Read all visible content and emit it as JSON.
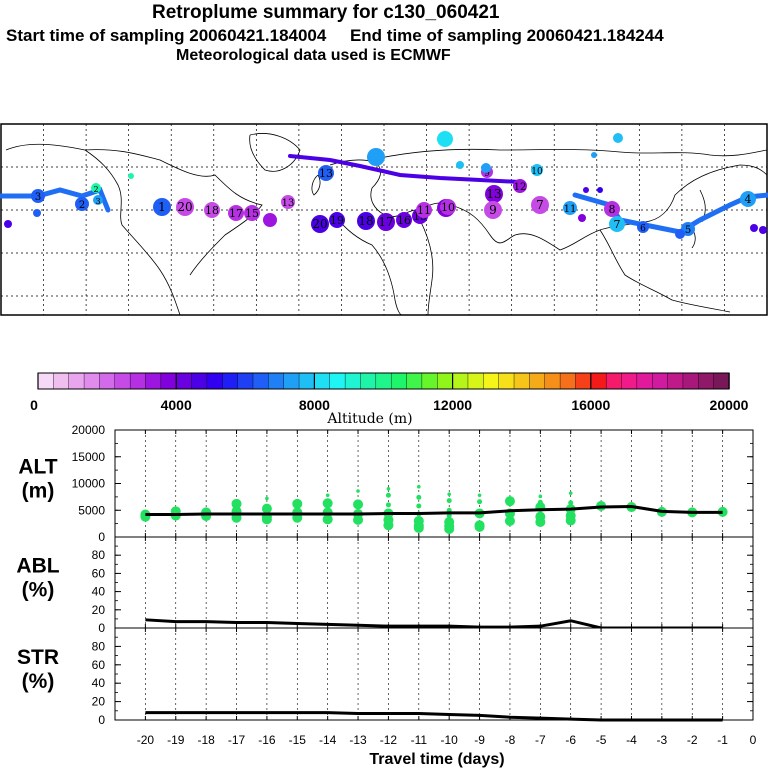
{
  "header": {
    "title": "Retroplume summary for c130_060421",
    "sampling_line": "Start time of sampling 20060421.184004     End time of sampling 20060421.184244",
    "met_line": "Meteorological data used is ECMWF"
  },
  "colors": {
    "scale": [
      "#f6d9f6",
      "#f0bff0",
      "#e9a6ee",
      "#e08ced",
      "#d36ae9",
      "#c64be6",
      "#b52fe3",
      "#9d16e0",
      "#8200dc",
      "#6a00e0",
      "#4b00e6",
      "#3200f0",
      "#1f1ff5",
      "#1f3ff5",
      "#1f5ff5",
      "#1f7ff5",
      "#1f9ff5",
      "#1fbff5",
      "#1fdff5",
      "#1ff5f5",
      "#1ff5d0",
      "#1ff5a8",
      "#1ff58a",
      "#1ff56a",
      "#3ff54a",
      "#65f52a",
      "#90f51a",
      "#b5f51a",
      "#d8f51a",
      "#f5f51a",
      "#f5e01a",
      "#f5c51a",
      "#f5aa1a",
      "#f58f1a",
      "#f5701a",
      "#f5401a",
      "#f51a1a",
      "#f51a6a",
      "#f01a8a",
      "#e01a9a",
      "#d01aa0",
      "#c01a8a",
      "#a8187a",
      "#901868",
      "#781858"
    ],
    "alt_points": "#22e060",
    "line": "#000000"
  },
  "colorbar": {
    "tick_labels": [
      "0",
      "4000",
      "8000",
      "12000",
      "16000",
      "20000"
    ],
    "title": "Altitude (m)"
  },
  "map": {
    "trajectory_labels": [
      {
        "t": "20",
        "c": "#4b00e6"
      },
      {
        "t": "19",
        "c": "#4b00e6"
      },
      {
        "t": "18",
        "c": "#4b00e6"
      },
      {
        "t": "17",
        "c": "#6a00e0"
      },
      {
        "t": "16",
        "c": "#6a00e0"
      },
      {
        "t": "15",
        "c": "#6a00e0"
      },
      {
        "t": "14",
        "c": "#8200dc"
      },
      {
        "t": "13",
        "c": "#8200dc"
      },
      {
        "t": "12",
        "c": "#9d16e0"
      },
      {
        "t": "11",
        "c": "#1f9ff5"
      },
      {
        "t": "10",
        "c": "#1fbff5"
      },
      {
        "t": "9",
        "c": "#b52fe3"
      },
      {
        "t": "8",
        "c": "#b52fe3"
      },
      {
        "t": "7",
        "c": "#1fbff5"
      },
      {
        "t": "6",
        "c": "#1f5ff5"
      },
      {
        "t": "5",
        "c": "#1f7ff5"
      },
      {
        "t": "4",
        "c": "#1f9ff5"
      },
      {
        "t": "3",
        "c": "#1f5ff5"
      },
      {
        "t": "2",
        "c": "#1f5ff5"
      },
      {
        "t": "1",
        "c": "#1f5ff5"
      },
      {
        "t": "20",
        "c": "#c64be6"
      },
      {
        "t": "18",
        "c": "#c64be6"
      },
      {
        "t": "17",
        "c": "#b52fe3"
      },
      {
        "t": "15",
        "c": "#b52fe3"
      },
      {
        "t": "13",
        "c": "#c64be6"
      },
      {
        "t": "11",
        "c": "#b52fe3"
      },
      {
        "t": "10",
        "c": "#b52fe3"
      },
      {
        "t": "9",
        "c": "#c64be6"
      },
      {
        "t": "7",
        "c": "#c64be6"
      },
      {
        "t": "13",
        "c": "#1f5ff5"
      },
      {
        "t": "2",
        "c": "#1ff5a8"
      },
      {
        "t": "3",
        "c": "#1f9ff5"
      }
    ]
  },
  "chart_data": [
    {
      "type": "scatter",
      "ylabel": "ALT\n(m)",
      "ylabel_line1": "ALT",
      "ylabel_line2": "(m)",
      "ylim": [
        0,
        20000
      ],
      "yticks": [
        "0",
        "5000",
        "10000",
        "15000",
        "20000"
      ],
      "x": [
        -20,
        -19,
        -18,
        -17,
        -16,
        -15,
        -14,
        -13,
        -12,
        -11,
        -10,
        -9,
        -8,
        -7,
        -6,
        -5,
        -4,
        -3,
        -2,
        -1
      ],
      "mean_line": [
        4200,
        4200,
        4300,
        4300,
        4300,
        4300,
        4300,
        4300,
        4400,
        4400,
        4500,
        4500,
        4900,
        5100,
        5200,
        5600,
        5700,
        4800,
        4600,
        4600
      ],
      "points": [
        {
          "x": -20,
          "y": [
            4200,
            3800
          ]
        },
        {
          "x": -19,
          "y": [
            4800,
            4000
          ]
        },
        {
          "x": -18,
          "y": [
            4600,
            3900
          ]
        },
        {
          "x": -17,
          "y": [
            6200,
            4800,
            3600
          ]
        },
        {
          "x": -16,
          "y": [
            7200,
            5300,
            3800,
            3300
          ]
        },
        {
          "x": -15,
          "y": [
            6200,
            4600,
            3600
          ]
        },
        {
          "x": -14,
          "y": [
            7800,
            6300,
            4600,
            3300
          ]
        },
        {
          "x": -13,
          "y": [
            8600,
            6100,
            4300,
            3200
          ]
        },
        {
          "x": -12,
          "y": [
            9000,
            7800,
            6000,
            4400,
            3200,
            2200
          ]
        },
        {
          "x": -11,
          "y": [
            9400,
            7400,
            5800,
            4300,
            3000,
            2100,
            1700
          ]
        },
        {
          "x": -10,
          "y": [
            8000,
            6800,
            5000,
            4000,
            2800,
            2000,
            1500
          ]
        },
        {
          "x": -9,
          "y": [
            7800,
            6600,
            4400,
            2200,
            1900
          ]
        },
        {
          "x": -8,
          "y": [
            7200,
            6700,
            4400,
            3000
          ]
        },
        {
          "x": -7,
          "y": [
            7600,
            6500,
            5600,
            3800,
            2800
          ]
        },
        {
          "x": -6,
          "y": [
            8200,
            6400,
            5200,
            4000,
            3100
          ]
        },
        {
          "x": -5,
          "y": [
            5800
          ]
        },
        {
          "x": -4,
          "y": [
            5600
          ]
        },
        {
          "x": -3,
          "y": [
            4700
          ]
        },
        {
          "x": -2,
          "y": [
            4600
          ]
        },
        {
          "x": -1,
          "y": [
            4700
          ]
        }
      ]
    },
    {
      "type": "line",
      "ylabel_line1": "ABL",
      "ylabel_line2": "(%)",
      "ylim": [
        0,
        100
      ],
      "yticks": [
        "0",
        "20",
        "40",
        "60",
        "80"
      ],
      "x": [
        -20,
        -19,
        -18,
        -17,
        -16,
        -15,
        -14,
        -13,
        -12,
        -11,
        -10,
        -9,
        -8,
        -7,
        -6,
        -5,
        -4,
        -3,
        -2,
        -1
      ],
      "values": [
        9,
        7,
        7,
        6,
        6,
        5,
        4,
        3,
        2,
        2,
        2,
        1,
        1,
        2,
        8,
        0,
        0,
        0,
        0,
        0
      ]
    },
    {
      "type": "line",
      "ylabel_line1": "STR",
      "ylabel_line2": "(%)",
      "ylim": [
        0,
        100
      ],
      "yticks": [
        "0",
        "20",
        "40",
        "60",
        "80"
      ],
      "x": [
        -20,
        -19,
        -18,
        -17,
        -16,
        -15,
        -14,
        -13,
        -12,
        -11,
        -10,
        -9,
        -8,
        -7,
        -6,
        -5,
        -4,
        -3,
        -2,
        -1
      ],
      "values": [
        8,
        8,
        8,
        8,
        8,
        8,
        8,
        7,
        7,
        7,
        6,
        5,
        3,
        2,
        1,
        0,
        0,
        0,
        0,
        0
      ]
    }
  ],
  "xaxis": {
    "tick_labels": [
      "-20",
      "-19",
      "-18",
      "-17",
      "-16",
      "-15",
      "-14",
      "-13",
      "-12",
      "-11",
      "-10",
      "-9",
      "-8",
      "-7",
      "-6",
      "-5",
      "-4",
      "-3",
      "-2",
      "-1",
      "0"
    ],
    "title": "Travel time (days)"
  }
}
